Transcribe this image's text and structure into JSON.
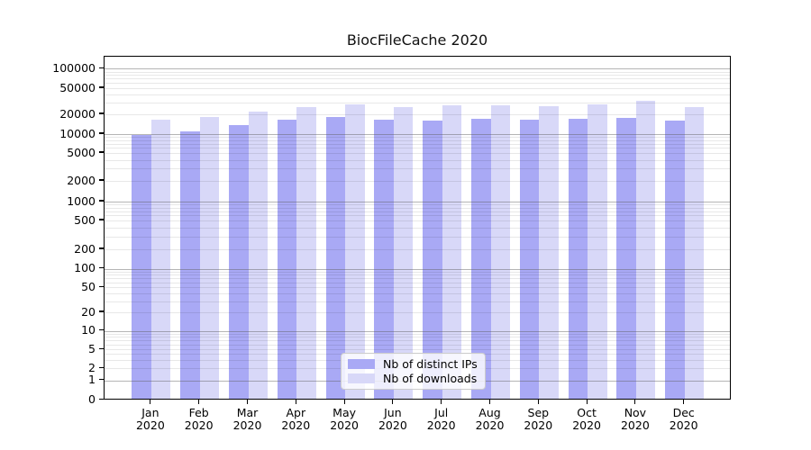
{
  "chart_data": {
    "type": "bar",
    "title": "BiocFileCache 2020",
    "categories": [
      "Jan 2020",
      "Feb 2020",
      "Mar 2020",
      "Apr 2020",
      "May 2020",
      "Jun 2020",
      "Jul 2020",
      "Aug 2020",
      "Sep 2020",
      "Oct 2020",
      "Nov 2020",
      "Dec 2020"
    ],
    "series": [
      {
        "name": "Nb of distinct IPs",
        "color": "#a9a9f5",
        "values": [
          9200,
          10400,
          12900,
          15900,
          17600,
          15800,
          15400,
          16400,
          15900,
          16400,
          16600,
          15100
        ]
      },
      {
        "name": "Nb of downloads",
        "color": "#d8d8f8",
        "values": [
          15800,
          17600,
          21100,
          24800,
          27400,
          24900,
          26300,
          26300,
          25500,
          27400,
          30200,
          24200
        ]
      }
    ],
    "xlabel": "",
    "ylabel": "",
    "yscale": "log-like (compressed near zero)",
    "ytick_labels": [
      0,
      1,
      2,
      5,
      10,
      20,
      50,
      100,
      200,
      500,
      1000,
      2000,
      5000,
      10000,
      20000,
      50000,
      100000
    ],
    "ylim": [
      0,
      150000
    ],
    "grid": "horizontal: dark decade gridlines + light minor gridlines, drawn over bars",
    "legend_position": "lower center inside plot"
  }
}
